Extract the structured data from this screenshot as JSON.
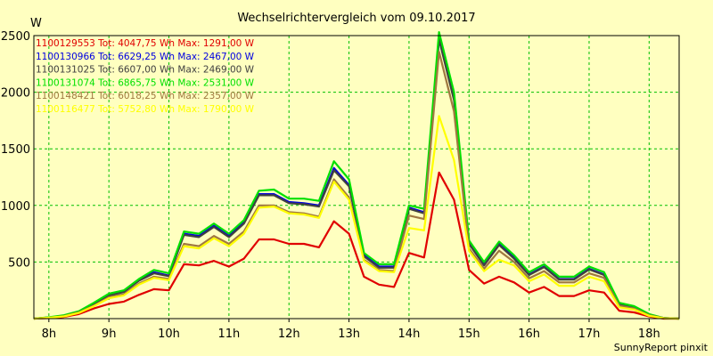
{
  "chart_data": {
    "type": "line",
    "title": "Wechselrichtervergleich vom 09.10.2017",
    "ylabel": "W",
    "xlabel": "",
    "ylim": [
      0,
      2500
    ],
    "xlim": [
      7.75,
      18.5
    ],
    "y_ticks": [
      500,
      1000,
      1500,
      2000,
      2500
    ],
    "x_ticks": [
      8,
      9,
      10,
      11,
      12,
      13,
      14,
      15,
      16,
      17,
      18
    ],
    "x_tick_labels": [
      "8h",
      "9h",
      "10h",
      "11h",
      "12h",
      "13h",
      "14h",
      "15h",
      "16h",
      "17h",
      "18h"
    ],
    "grid": true,
    "legend_position": "top-left",
    "x": [
      7.75,
      8.0,
      8.25,
      8.5,
      8.75,
      9.0,
      9.25,
      9.5,
      9.75,
      10.0,
      10.25,
      10.5,
      10.75,
      11.0,
      11.25,
      11.5,
      11.75,
      12.0,
      12.25,
      12.5,
      12.75,
      13.0,
      13.25,
      13.5,
      13.75,
      14.0,
      14.25,
      14.5,
      14.75,
      15.0,
      15.25,
      15.5,
      15.75,
      16.0,
      16.25,
      16.5,
      16.75,
      17.0,
      17.25,
      17.5,
      17.75,
      18.0,
      18.25,
      18.5
    ],
    "series": [
      {
        "name": "1100129553 Tot: 4047,75 Wh Max: 1291,00 W",
        "color": "#e00000",
        "values": [
          0,
          5,
          15,
          40,
          90,
          130,
          150,
          210,
          260,
          250,
          480,
          470,
          510,
          460,
          530,
          700,
          700,
          660,
          660,
          630,
          860,
          750,
          370,
          300,
          280,
          580,
          540,
          1291,
          1050,
          430,
          310,
          370,
          320,
          230,
          280,
          200,
          200,
          250,
          230,
          70,
          55,
          20,
          0,
          0
        ]
      },
      {
        "name": "1100130966 Tot: 6629,25 Wh Max: 2467,00 W",
        "color": "#0000e0",
        "values": [
          0,
          10,
          25,
          60,
          130,
          210,
          240,
          340,
          410,
          380,
          750,
          730,
          820,
          730,
          850,
          1100,
          1100,
          1030,
          1020,
          1000,
          1330,
          1180,
          560,
          460,
          460,
          980,
          940,
          2467,
          1950,
          670,
          480,
          660,
          540,
          390,
          460,
          350,
          350,
          440,
          390,
          130,
          100,
          35,
          5,
          0
        ]
      },
      {
        "name": "1100131025 Tot: 6607,00 Wh Max: 2469,00 W",
        "color": "#404040",
        "values": [
          0,
          10,
          25,
          60,
          125,
          205,
          235,
          335,
          400,
          375,
          740,
          720,
          810,
          720,
          840,
          1090,
          1090,
          1020,
          1010,
          990,
          1310,
          1170,
          550,
          450,
          450,
          970,
          930,
          2469,
          1930,
          660,
          470,
          650,
          530,
          385,
          455,
          345,
          345,
          435,
          385,
          125,
          98,
          35,
          5,
          0
        ]
      },
      {
        "name": "1100131074 Tot: 6865,75 Wh Max: 2531,00 W",
        "color": "#00e000",
        "values": [
          0,
          12,
          30,
          65,
          140,
          220,
          250,
          350,
          430,
          400,
          770,
          750,
          840,
          750,
          870,
          1130,
          1140,
          1060,
          1060,
          1040,
          1390,
          1230,
          580,
          480,
          480,
          1000,
          970,
          2531,
          2000,
          690,
          500,
          680,
          560,
          410,
          480,
          370,
          370,
          460,
          410,
          140,
          110,
          40,
          5,
          0
        ]
      },
      {
        "name": "1100148421 Tot: 6018,25 Wh Max: 2357,00 W",
        "color": "#a07840",
        "values": [
          0,
          8,
          22,
          55,
          115,
          190,
          215,
          310,
          370,
          350,
          660,
          640,
          730,
          660,
          770,
          1000,
          1000,
          940,
          930,
          900,
          1230,
          1070,
          520,
          430,
          420,
          910,
          880,
          2357,
          1830,
          620,
          440,
          600,
          500,
          355,
          420,
          320,
          320,
          400,
          360,
          115,
          90,
          30,
          4,
          0
        ]
      },
      {
        "name": "1100116477 Tot: 5752,80 Wh Max: 1790,00 W",
        "color": "#ffff00",
        "values": [
          0,
          8,
          20,
          50,
          110,
          180,
          205,
          300,
          360,
          340,
          640,
          620,
          710,
          640,
          750,
          980,
          990,
          930,
          920,
          890,
          1210,
          1050,
          510,
          420,
          410,
          800,
          780,
          1790,
          1400,
          600,
          420,
          520,
          470,
          330,
          390,
          290,
          290,
          370,
          330,
          100,
          80,
          25,
          3,
          0
        ]
      }
    ],
    "footer": "SunnyReport pinxit"
  }
}
